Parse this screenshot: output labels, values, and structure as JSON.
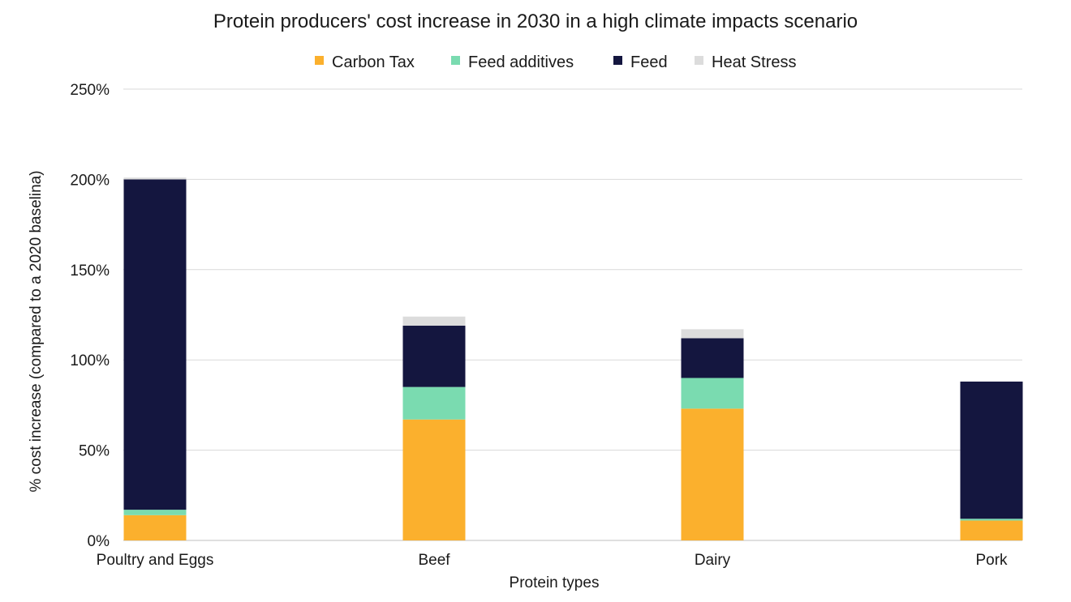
{
  "chart_data": {
    "type": "bar",
    "stacked": true,
    "title": "Protein producers' cost increase in 2030 in a high climate impacts scenario",
    "xlabel": "Protein types",
    "ylabel": "% cost increase (compared to a 2020 baselina)",
    "ylim": [
      0,
      250
    ],
    "yticks": [
      0,
      50,
      100,
      150,
      200,
      250
    ],
    "ytick_labels": [
      "0%",
      "50%",
      "100%",
      "150%",
      "200%",
      "250%"
    ],
    "categories": [
      "Poultry and Eggs",
      "Beef",
      "Dairy",
      "Pork"
    ],
    "legend_position": "top",
    "grid": true,
    "series": [
      {
        "name": "Carbon Tax",
        "color": "#fbb02d",
        "values": [
          14,
          67,
          73,
          11
        ]
      },
      {
        "name": "Feed additives",
        "color": "#7adbb0",
        "values": [
          3,
          18,
          17,
          1
        ]
      },
      {
        "name": "Feed",
        "color": "#14163f",
        "values": [
          183,
          34,
          22,
          76
        ]
      },
      {
        "name": "Heat Stress",
        "color": "#dcdcdc",
        "values": [
          1,
          5,
          5,
          0
        ]
      }
    ]
  }
}
